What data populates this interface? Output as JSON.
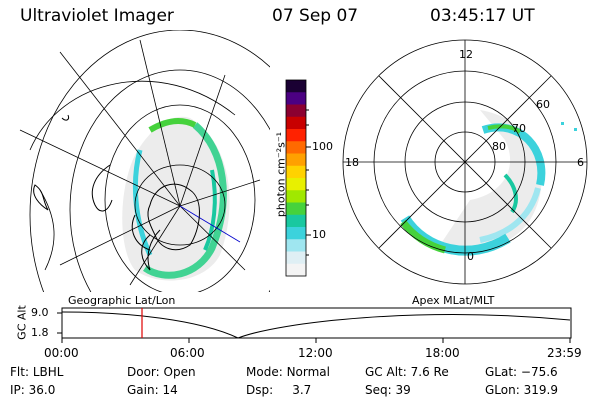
{
  "header": {
    "title": "Ultraviolet Imager",
    "date": "07 Sep 07",
    "time": "03:45:17 UT"
  },
  "colorbar": {
    "unit_label": "photon cm⁻²s⁻¹",
    "ticks": [
      "100",
      "10"
    ],
    "colors": [
      "#1a0033",
      "#4b0082",
      "#8b0030",
      "#c80000",
      "#ff2200",
      "#ff6a00",
      "#ffa000",
      "#ffd200",
      "#e8f000",
      "#a0e800",
      "#46d23c",
      "#19c8a0",
      "#3cd2dc",
      "#9fe6f0",
      "#dfeff4",
      "#f4f4f4"
    ]
  },
  "right_map": {
    "mlt_labels": [
      "12",
      "18",
      "6",
      "0"
    ],
    "lat_labels": [
      "60",
      "70",
      "80"
    ]
  },
  "left_map": {
    "caption": "Geographic Lat/Lon"
  },
  "right_caption": "Apex MLat/MLT",
  "timeline": {
    "axis_label": "GC Alt",
    "y_ticks": [
      "9.0",
      "1.8"
    ],
    "x_ticks": [
      "00:00",
      "06:00",
      "12:00",
      "18:00",
      "23:59"
    ],
    "marker_color": "#e00000"
  },
  "info": {
    "row1": [
      {
        "key": "Flt:",
        "value": "LBHL"
      },
      {
        "key": "Door:",
        "value": "Open"
      },
      {
        "key": "Mode:",
        "value": "Normal"
      },
      {
        "key": "GC Alt:",
        "value": "7.6 Re"
      },
      {
        "key": "GLat:",
        "value": "−75.6"
      }
    ],
    "row2": [
      {
        "key": "IP:",
        "value": "36.0"
      },
      {
        "key": "Gain:",
        "value": "14"
      },
      {
        "key": "Dsp:",
        "value": "3.7"
      },
      {
        "key": "Seq:",
        "value": "39"
      },
      {
        "key": "GLon:",
        "value": "319.9"
      }
    ]
  }
}
